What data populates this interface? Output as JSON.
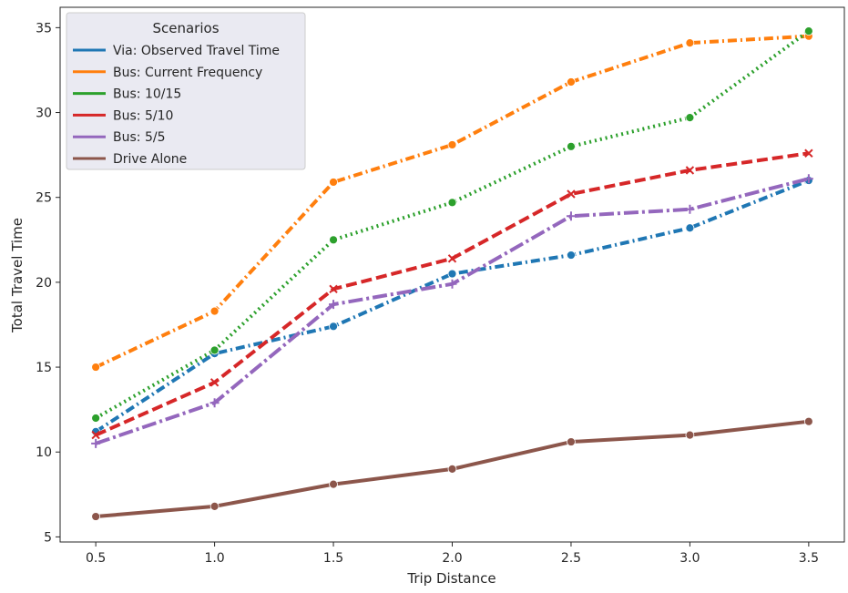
{
  "chart_data": {
    "type": "line",
    "title": "",
    "xlabel": "Trip Distance",
    "ylabel": "Total Travel Time",
    "x": [
      0.5,
      1.0,
      1.5,
      2.0,
      2.5,
      3.0,
      3.5
    ],
    "x_ticks": [
      "0.5",
      "1.0",
      "1.5",
      "2.0",
      "2.5",
      "3.0",
      "3.5"
    ],
    "y_ticks": [
      "5",
      "10",
      "15",
      "20",
      "25",
      "30",
      "35"
    ],
    "xlim": [
      0.35,
      3.65
    ],
    "ylim": [
      4.7,
      36.2
    ],
    "grid": false,
    "legend": {
      "title": "Scenarios",
      "placement": "top-left"
    },
    "series": [
      {
        "name": "Via: Observed Travel Time",
        "color": "#1f77b4",
        "dash": "dashdot",
        "marker": "dot",
        "values": [
          11.2,
          15.8,
          17.4,
          20.5,
          21.6,
          23.2,
          26.0
        ]
      },
      {
        "name": "Bus: Current Frequency",
        "color": "#ff7f0e",
        "dash": "dashdot",
        "marker": "dot",
        "values": [
          15.0,
          18.3,
          25.9,
          28.1,
          31.8,
          34.1,
          34.5
        ]
      },
      {
        "name": "Bus: 10/15",
        "color": "#2ca02c",
        "dash": "dotted",
        "marker": "dot",
        "values": [
          12.0,
          16.0,
          22.5,
          24.7,
          28.0,
          29.7,
          34.8
        ]
      },
      {
        "name": "Bus: 5/10",
        "color": "#d62728",
        "dash": "dashed",
        "marker": "x",
        "values": [
          11.0,
          14.1,
          19.6,
          21.4,
          25.2,
          26.6,
          27.6
        ]
      },
      {
        "name": "Bus: 5/5",
        "color": "#9467bd",
        "dash": "longdashdot",
        "marker": "plus",
        "values": [
          10.5,
          12.9,
          18.7,
          19.9,
          23.9,
          24.3,
          26.1
        ]
      },
      {
        "name": "Drive Alone",
        "color": "#8c564b",
        "dash": "solid",
        "marker": "dot",
        "values": [
          6.2,
          6.8,
          8.1,
          9.0,
          10.6,
          11.0,
          11.8
        ]
      }
    ]
  }
}
